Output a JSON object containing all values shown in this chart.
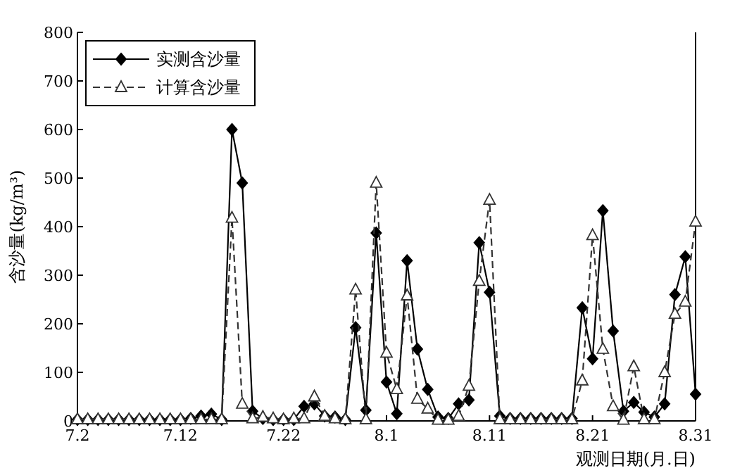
{
  "chart_data": {
    "type": "line",
    "xlabel": "观测日期(月.日)",
    "ylabel": "含沙量(kg/m³)",
    "categories": [
      "7.2",
      null,
      null,
      null,
      null,
      null,
      null,
      null,
      null,
      null,
      "7.12",
      null,
      null,
      null,
      null,
      null,
      null,
      null,
      null,
      null,
      "7.22",
      null,
      null,
      null,
      null,
      null,
      null,
      null,
      null,
      null,
      "8.1",
      null,
      null,
      null,
      null,
      null,
      null,
      null,
      null,
      null,
      "8.11",
      null,
      null,
      null,
      null,
      null,
      null,
      null,
      null,
      null,
      "8.21",
      null,
      null,
      null,
      null,
      null,
      null,
      null,
      null,
      null,
      "8.31"
    ],
    "ylim": [
      0,
      800
    ],
    "yticks": [
      0,
      100,
      200,
      300,
      400,
      500,
      600,
      700,
      800
    ],
    "grid": false,
    "legend": "top left",
    "series": [
      {
        "name": "实测含沙量",
        "color": "#000000",
        "marker": "diamond",
        "line_style": "solid",
        "values": [
          3,
          3,
          3,
          3,
          3,
          3,
          3,
          3,
          3,
          3,
          3,
          5,
          10,
          14,
          3,
          600,
          490,
          20,
          5,
          3,
          3,
          3,
          30,
          35,
          10,
          8,
          3,
          192,
          22,
          387,
          80,
          15,
          330,
          148,
          65,
          8,
          5,
          35,
          43,
          367,
          265,
          10,
          5,
          5,
          5,
          5,
          5,
          5,
          5,
          233,
          128,
          433,
          185,
          20,
          38,
          18,
          8,
          35,
          260,
          338,
          55
        ]
      },
      {
        "name": "计算含沙量",
        "color": "#333333",
        "marker": "triangle",
        "line_style": "dashed",
        "values": [
          3,
          3,
          3,
          3,
          3,
          3,
          3,
          3,
          3,
          3,
          3,
          3,
          3,
          3,
          3,
          418,
          35,
          5,
          8,
          5,
          3,
          5,
          5,
          50,
          10,
          5,
          3,
          270,
          3,
          490,
          140,
          65,
          258,
          45,
          25,
          2,
          2,
          10,
          72,
          288,
          455,
          3,
          3,
          3,
          3,
          3,
          3,
          3,
          3,
          83,
          382,
          148,
          30,
          2,
          112,
          3,
          3,
          100,
          220,
          245,
          410
        ]
      }
    ]
  }
}
